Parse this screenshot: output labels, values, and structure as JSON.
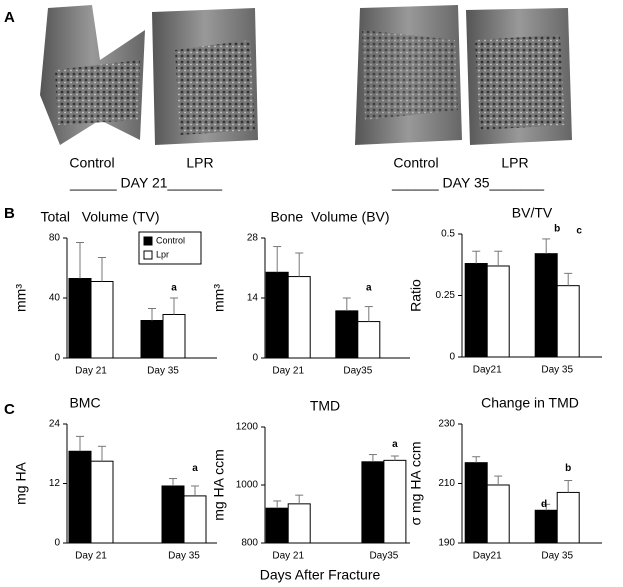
{
  "panel_labels": [
    "A",
    "B",
    "C"
  ],
  "panel_a": {
    "left": {
      "labels": [
        "Control",
        "LPR"
      ],
      "day": "______ DAY 21_______"
    },
    "right": {
      "labels": [
        "Control",
        "LPR"
      ],
      "day": "______ DAY 35_______"
    }
  },
  "x_axis_label": "Days After Fracture",
  "chart_data": [
    {
      "type": "bar",
      "title": "Total   Volume (TV)",
      "y_label": "mm³",
      "categories": [
        "Day 21",
        "Day 35"
      ],
      "series": [
        {
          "name": "Control",
          "color": "#000000",
          "values": [
            53,
            25
          ],
          "errors": [
            24,
            8
          ]
        },
        {
          "name": "Lpr",
          "color": "#ffffff",
          "values": [
            51,
            29
          ],
          "errors": [
            16,
            11
          ]
        }
      ],
      "ylim": [
        0,
        80
      ],
      "yticks": [
        0,
        40,
        80
      ],
      "annotations": [
        "a"
      ]
    },
    {
      "type": "bar",
      "title": "Bone  Volume (BV)",
      "y_label": "mm³",
      "categories": [
        "Day 21",
        "Day35"
      ],
      "series": [
        {
          "color": "#000000",
          "values": [
            20,
            11
          ],
          "errors": [
            6,
            3
          ]
        },
        {
          "color": "#ffffff",
          "values": [
            19,
            8.5
          ],
          "errors": [
            5.5,
            3.5
          ]
        }
      ],
      "ylim": [
        0,
        28
      ],
      "yticks": [
        0,
        14,
        28
      ],
      "annotations": [
        "a"
      ]
    },
    {
      "type": "bar",
      "title": "BV/TV",
      "y_label": "Ratio",
      "categories": [
        "Day21",
        "Day 35"
      ],
      "series": [
        {
          "color": "#000000",
          "values": [
            0.38,
            0.42
          ],
          "errors": [
            0.05,
            0.06
          ]
        },
        {
          "color": "#ffffff",
          "values": [
            0.37,
            0.29
          ],
          "errors": [
            0.06,
            0.05
          ]
        }
      ],
      "ylim": [
        0,
        0.5
      ],
      "yticks": [
        0,
        0.25,
        0.5
      ],
      "annotations": [
        "b",
        "c"
      ]
    },
    {
      "type": "bar",
      "title": "BMC",
      "y_label": "mg HA",
      "categories": [
        "Day 21",
        "Day 35"
      ],
      "series": [
        {
          "color": "#000000",
          "values": [
            18.5,
            11.5
          ],
          "errors": [
            3,
            1.5
          ]
        },
        {
          "color": "#ffffff",
          "values": [
            16.5,
            9.5
          ],
          "errors": [
            3,
            2
          ]
        }
      ],
      "ylim": [
        0,
        24
      ],
      "yticks": [
        0,
        12,
        24
      ],
      "annotations": [
        "a"
      ]
    },
    {
      "type": "bar",
      "title": "TMD",
      "y_label": "mg HA ccm",
      "categories": [
        "Day 21",
        "Day35"
      ],
      "series": [
        {
          "color": "#000000",
          "values": [
            920,
            1080
          ],
          "errors": [
            25,
            25
          ]
        },
        {
          "color": "#ffffff",
          "values": [
            935,
            1085
          ],
          "errors": [
            30,
            15
          ]
        }
      ],
      "ylim": [
        800,
        1200
      ],
      "yticks": [
        800,
        1000,
        1200
      ],
      "annotations": [
        "a"
      ]
    },
    {
      "type": "bar",
      "title": "Change in TMD",
      "y_label": "σ mg HA ccm",
      "categories": [
        "Day21",
        "Day 35"
      ],
      "series": [
        {
          "color": "#000000",
          "values": [
            217,
            201
          ],
          "errors": [
            2,
            2
          ]
        },
        {
          "color": "#ffffff",
          "values": [
            209.5,
            207
          ],
          "errors": [
            3,
            4
          ]
        }
      ],
      "ylim": [
        190,
        230
      ],
      "yticks": [
        190,
        210,
        230
      ],
      "annotations": [
        "d",
        "b"
      ]
    }
  ]
}
